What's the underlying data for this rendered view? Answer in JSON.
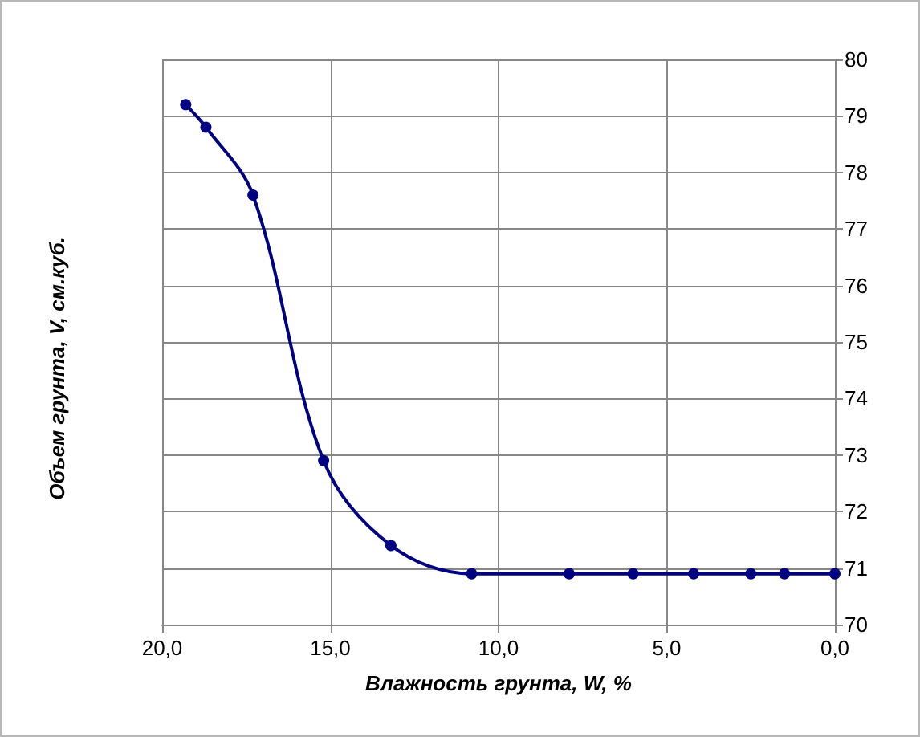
{
  "chart_data": {
    "type": "line",
    "xlabel": "Влажность грунта, W, %",
    "ylabel": "Объем грунта, V, см.куб.",
    "x": [
      19.3,
      18.7,
      17.3,
      15.2,
      13.2,
      10.8,
      7.9,
      6.0,
      4.2,
      2.5,
      1.5,
      0
    ],
    "series": [
      {
        "color": "#000080",
        "values": [
          79.2,
          78.8,
          77.6,
          72.9,
          71.4,
          70.9,
          70.9,
          70.9,
          70.9,
          70.9,
          70.9,
          70.9
        ]
      }
    ],
    "xlim": [
      20,
      0
    ],
    "xticks": [
      {
        "value": 20,
        "label": "20,0"
      },
      {
        "value": 15,
        "label": "15,0"
      },
      {
        "value": 10,
        "label": "10,0"
      },
      {
        "value": 5,
        "label": "5,0"
      },
      {
        "value": 0,
        "label": "0,0"
      }
    ],
    "ylim": [
      70,
      80
    ],
    "yticks": [
      70,
      71,
      72,
      73,
      74,
      75,
      76,
      77,
      78,
      79,
      80
    ],
    "grid": true,
    "marker": "circle",
    "line_style": "solid"
  }
}
